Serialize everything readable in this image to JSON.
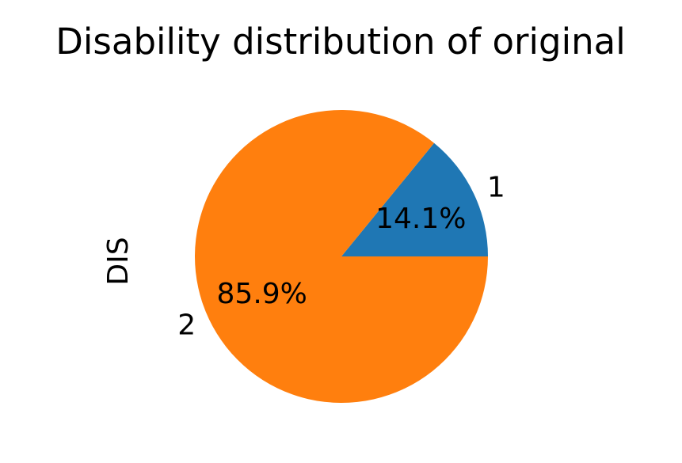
{
  "chart_data": {
    "type": "pie",
    "title": "Disability distribution of original",
    "ylabel": "DIS",
    "slices": [
      {
        "label": "1",
        "value": 14.1,
        "pct_label": "14.1%",
        "color": "#1f77b4"
      },
      {
        "label": "2",
        "value": 85.9,
        "pct_label": "85.9%",
        "color": "#ff7f0e"
      }
    ],
    "start_angle_deg": 0,
    "direction": "counterclockwise"
  }
}
